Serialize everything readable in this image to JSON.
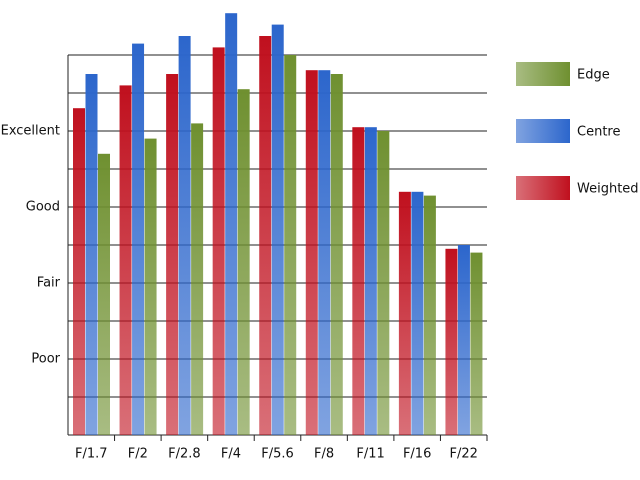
{
  "chart_data": {
    "type": "bar",
    "categories": [
      "F/1.7",
      "F/2",
      "F/2.8",
      "F/4",
      "F/5.6",
      "F/8",
      "F/11",
      "F/16",
      "F/22"
    ],
    "series": [
      {
        "name": "Weighted",
        "color": "#c0101e",
        "values": [
          8.6,
          9.2,
          9.5,
          10.2,
          10.5,
          9.6,
          8.1,
          6.4,
          4.9
        ]
      },
      {
        "name": "Centre",
        "color": "#2c66cc",
        "values": [
          9.5,
          10.3,
          10.5,
          11.1,
          10.8,
          9.6,
          8.1,
          6.4,
          5.0
        ]
      },
      {
        "name": "Edge",
        "color": "#6f9030",
        "values": [
          7.4,
          7.8,
          8.2,
          9.1,
          10.0,
          9.5,
          8.0,
          6.3,
          4.8
        ]
      }
    ],
    "ylim": [
      0,
      11.2
    ],
    "yticks": [
      {
        "value": 2,
        "label": "Poor"
      },
      {
        "value": 4,
        "label": "Fair"
      },
      {
        "value": 6,
        "label": "Good"
      },
      {
        "value": 8,
        "label": "Excellent"
      }
    ],
    "ygrid": [
      0,
      1,
      2,
      3,
      4,
      5,
      6,
      7,
      8,
      9,
      10
    ],
    "legend": "right"
  }
}
